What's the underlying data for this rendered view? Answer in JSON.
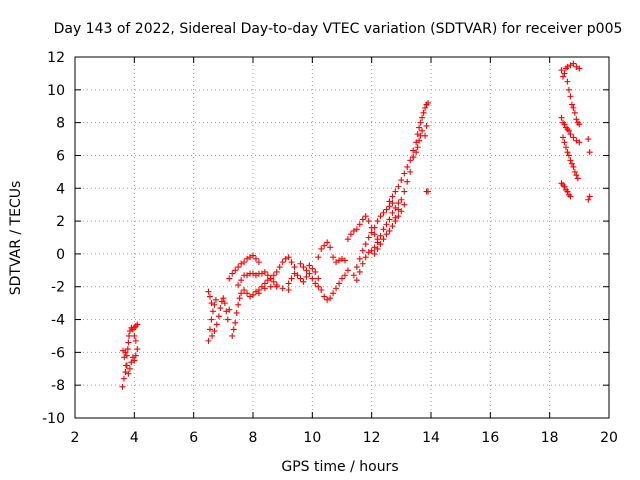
{
  "chart_data": {
    "type": "scatter",
    "title": "Day 143 of 2022, Sidereal Day-to-day VTEC variation (SDTVAR) for receiver p005",
    "xlabel": "GPS time / hours",
    "ylabel": "SDTVAR / TECUs",
    "xlim": [
      2,
      20
    ],
    "ylim": [
      -10,
      12
    ],
    "xticks": [
      2,
      4,
      6,
      8,
      10,
      12,
      14,
      16,
      18,
      20
    ],
    "yticks": [
      -10,
      -8,
      -6,
      -4,
      -2,
      0,
      2,
      4,
      6,
      8,
      10,
      12
    ],
    "grid": true,
    "marker": "plus",
    "color": "#ff0000",
    "series": [
      {
        "values": [
          [
            3.6,
            -8.1
          ],
          [
            3.65,
            -7.6
          ],
          [
            3.7,
            -7.2
          ],
          [
            3.72,
            -6.8
          ],
          [
            3.75,
            -6.2
          ],
          [
            3.78,
            -5.8
          ],
          [
            3.8,
            -5.4
          ],
          [
            3.82,
            -5.0
          ],
          [
            3.85,
            -4.7
          ],
          [
            3.9,
            -4.5
          ],
          [
            3.95,
            -4.6
          ],
          [
            4.0,
            -4.5
          ],
          [
            4.05,
            -4.4
          ],
          [
            4.1,
            -4.3
          ],
          [
            3.62,
            -5.9
          ],
          [
            3.66,
            -6.3
          ],
          [
            3.7,
            -6.0
          ],
          [
            3.75,
            -6.8
          ],
          [
            3.8,
            -7.3
          ],
          [
            3.85,
            -7.0
          ],
          [
            3.9,
            -6.6
          ],
          [
            3.95,
            -6.3
          ],
          [
            4.0,
            -6.5
          ],
          [
            4.05,
            -6.2
          ],
          [
            4.1,
            -5.8
          ],
          [
            4.0,
            -5.0
          ],
          [
            4.05,
            -5.3
          ],
          [
            6.5,
            -5.3
          ],
          [
            6.55,
            -4.6
          ],
          [
            6.6,
            -4.0
          ],
          [
            6.65,
            -3.5
          ],
          [
            6.7,
            -3.1
          ],
          [
            6.75,
            -2.8
          ],
          [
            6.5,
            -2.3
          ],
          [
            6.55,
            -2.6
          ],
          [
            6.6,
            -3.0
          ],
          [
            6.62,
            -5.0
          ],
          [
            6.7,
            -4.7
          ],
          [
            6.78,
            -4.3
          ],
          [
            6.85,
            -3.8
          ],
          [
            6.9,
            -3.3
          ],
          [
            6.95,
            -2.9
          ],
          [
            7.0,
            -2.7
          ],
          [
            7.05,
            -3.0
          ],
          [
            7.1,
            -3.5
          ],
          [
            7.15,
            -4.0
          ],
          [
            7.2,
            -3.4
          ],
          [
            7.3,
            -5.0
          ],
          [
            7.35,
            -4.6
          ],
          [
            7.4,
            -4.2
          ],
          [
            7.45,
            -3.6
          ],
          [
            7.5,
            -3.1
          ],
          [
            7.55,
            -2.7
          ],
          [
            7.6,
            -2.4
          ],
          [
            7.7,
            -2.2
          ],
          [
            7.8,
            -2.4
          ],
          [
            7.9,
            -2.6
          ],
          [
            8.0,
            -2.5
          ],
          [
            8.2,
            -2.4
          ],
          [
            8.4,
            -2.1
          ],
          [
            8.6,
            -2.0
          ],
          [
            8.8,
            -2.0
          ],
          [
            9.0,
            -2.1
          ],
          [
            9.2,
            -2.2
          ],
          [
            7.2,
            -1.5
          ],
          [
            7.3,
            -1.2
          ],
          [
            7.4,
            -1.0
          ],
          [
            7.5,
            -0.8
          ],
          [
            7.6,
            -0.6
          ],
          [
            7.7,
            -0.5
          ],
          [
            7.8,
            -0.3
          ],
          [
            7.9,
            -0.2
          ],
          [
            8.0,
            -0.1
          ],
          [
            8.1,
            -0.3
          ],
          [
            8.2,
            -0.5
          ],
          [
            7.5,
            -1.9
          ],
          [
            7.6,
            -1.6
          ],
          [
            7.7,
            -1.3
          ],
          [
            7.8,
            -1.3
          ],
          [
            7.9,
            -1.2
          ],
          [
            8.0,
            -1.2
          ],
          [
            8.1,
            -1.3
          ],
          [
            8.2,
            -1.2
          ],
          [
            8.3,
            -1.2
          ],
          [
            8.4,
            -1.1
          ],
          [
            8.5,
            -1.3
          ],
          [
            8.6,
            -1.5
          ],
          [
            8.7,
            -1.7
          ],
          [
            8.8,
            -1.9
          ],
          [
            8.0,
            -2.5
          ],
          [
            8.1,
            -2.3
          ],
          [
            8.2,
            -2.2
          ],
          [
            8.3,
            -2.0
          ],
          [
            8.4,
            -1.8
          ],
          [
            8.5,
            -1.6
          ],
          [
            8.6,
            -1.5
          ],
          [
            8.7,
            -1.3
          ],
          [
            8.8,
            -1.1
          ],
          [
            8.9,
            -0.8
          ],
          [
            9.0,
            -0.5
          ],
          [
            9.1,
            -0.3
          ],
          [
            9.2,
            -0.2
          ],
          [
            9.3,
            -0.5
          ],
          [
            9.4,
            -0.8
          ],
          [
            9.2,
            -1.8
          ],
          [
            9.3,
            -1.5
          ],
          [
            9.4,
            -1.2
          ],
          [
            9.5,
            -1.3
          ],
          [
            9.6,
            -1.5
          ],
          [
            9.7,
            -1.7
          ],
          [
            9.8,
            -1.4
          ],
          [
            9.9,
            -1.2
          ],
          [
            10.0,
            -1.5
          ],
          [
            10.1,
            -1.8
          ],
          [
            10.2,
            -2.0
          ],
          [
            9.6,
            -0.6
          ],
          [
            9.7,
            -0.8
          ],
          [
            9.8,
            -1.0
          ],
          [
            9.9,
            -0.7
          ],
          [
            10.0,
            -0.9
          ],
          [
            10.1,
            -1.1
          ],
          [
            10.2,
            -1.5
          ],
          [
            10.3,
            -2.2
          ],
          [
            10.4,
            -2.6
          ],
          [
            10.5,
            -2.8
          ],
          [
            10.6,
            -2.7
          ],
          [
            10.7,
            -2.4
          ],
          [
            10.8,
            -2.1
          ],
          [
            10.9,
            -1.8
          ],
          [
            11.0,
            -1.5
          ],
          [
            11.1,
            -1.3
          ],
          [
            11.2,
            -1.0
          ],
          [
            10.2,
            -0.2
          ],
          [
            10.3,
            0.3
          ],
          [
            10.4,
            0.5
          ],
          [
            10.5,
            0.7
          ],
          [
            10.6,
            0.4
          ],
          [
            10.7,
            -0.2
          ],
          [
            10.8,
            -0.5
          ],
          [
            10.9,
            -0.4
          ],
          [
            11.0,
            -0.3
          ],
          [
            11.1,
            -0.4
          ],
          [
            11.2,
            0.9
          ],
          [
            11.3,
            1.2
          ],
          [
            11.4,
            1.4
          ],
          [
            11.5,
            1.5
          ],
          [
            11.6,
            1.8
          ],
          [
            11.7,
            2.1
          ],
          [
            11.8,
            2.3
          ],
          [
            11.9,
            2.0
          ],
          [
            12.0,
            1.6
          ],
          [
            12.1,
            1.2
          ],
          [
            12.2,
            0.9
          ],
          [
            11.4,
            -1.3
          ],
          [
            11.5,
            -0.8
          ],
          [
            11.6,
            -0.3
          ],
          [
            11.7,
            0.2
          ],
          [
            11.8,
            0.6
          ],
          [
            11.9,
            1.0
          ],
          [
            12.0,
            1.3
          ],
          [
            12.1,
            1.6
          ],
          [
            12.2,
            2.0
          ],
          [
            12.3,
            2.3
          ],
          [
            12.4,
            2.5
          ],
          [
            12.5,
            2.7
          ],
          [
            12.6,
            2.9
          ],
          [
            12.7,
            3.1
          ],
          [
            11.5,
            -1.6
          ],
          [
            11.6,
            -1.1
          ],
          [
            11.7,
            -0.6
          ],
          [
            11.8,
            -0.2
          ],
          [
            11.9,
            0.1
          ],
          [
            12.0,
            0.2
          ],
          [
            12.1,
            0.4
          ],
          [
            12.2,
            0.7
          ],
          [
            12.3,
            1.1
          ],
          [
            12.4,
            1.5
          ],
          [
            12.5,
            1.8
          ],
          [
            12.6,
            2.1
          ],
          [
            12.7,
            2.5
          ],
          [
            12.8,
            2.8
          ],
          [
            12.9,
            3.1
          ],
          [
            12.1,
            0.0
          ],
          [
            12.2,
            0.3
          ],
          [
            12.3,
            0.6
          ],
          [
            12.4,
            0.9
          ],
          [
            12.5,
            1.2
          ],
          [
            12.6,
            1.4
          ],
          [
            12.7,
            1.7
          ],
          [
            12.8,
            2.0
          ],
          [
            12.9,
            2.3
          ],
          [
            13.0,
            2.6
          ],
          [
            13.1,
            3.0
          ],
          [
            12.6,
            3.2
          ],
          [
            12.7,
            3.5
          ],
          [
            12.8,
            3.8
          ],
          [
            12.9,
            4.1
          ],
          [
            13.0,
            4.5
          ],
          [
            13.1,
            4.9
          ],
          [
            13.2,
            5.3
          ],
          [
            13.3,
            5.7
          ],
          [
            13.4,
            5.9
          ],
          [
            12.8,
            2.2
          ],
          [
            12.9,
            2.7
          ],
          [
            13.0,
            3.3
          ],
          [
            13.1,
            3.8
          ],
          [
            13.2,
            4.4
          ],
          [
            13.3,
            5.0
          ],
          [
            13.4,
            6.3
          ],
          [
            13.5,
            6.8
          ],
          [
            13.55,
            7.3
          ],
          [
            13.6,
            7.7
          ],
          [
            13.65,
            8.0
          ],
          [
            13.7,
            8.3
          ],
          [
            13.75,
            8.6
          ],
          [
            13.8,
            8.9
          ],
          [
            13.85,
            9.1
          ],
          [
            13.9,
            9.2
          ],
          [
            13.4,
            5.9
          ],
          [
            13.5,
            6.2
          ],
          [
            13.55,
            6.5
          ],
          [
            13.6,
            6.9
          ],
          [
            13.65,
            7.2
          ],
          [
            13.7,
            7.5
          ],
          [
            13.8,
            7.2
          ],
          [
            13.85,
            7.8
          ],
          [
            13.9,
            3.8
          ],
          [
            13.85,
            3.8
          ],
          [
            18.4,
            11.2
          ],
          [
            18.45,
            10.8
          ],
          [
            18.5,
            11.0
          ],
          [
            18.55,
            11.3
          ],
          [
            18.6,
            11.4
          ],
          [
            18.7,
            11.5
          ],
          [
            18.8,
            11.6
          ],
          [
            18.9,
            11.4
          ],
          [
            19.0,
            11.3
          ],
          [
            18.6,
            10.5
          ],
          [
            18.65,
            10.0
          ],
          [
            18.7,
            9.6
          ],
          [
            18.75,
            9.1
          ],
          [
            18.8,
            8.9
          ],
          [
            18.85,
            8.6
          ],
          [
            18.9,
            8.2
          ],
          [
            18.95,
            8.0
          ],
          [
            19.0,
            7.9
          ],
          [
            18.4,
            8.3
          ],
          [
            18.45,
            8.0
          ],
          [
            18.5,
            7.9
          ],
          [
            18.55,
            7.7
          ],
          [
            18.6,
            7.6
          ],
          [
            18.65,
            7.5
          ],
          [
            18.7,
            7.3
          ],
          [
            18.8,
            7.1
          ],
          [
            18.9,
            6.9
          ],
          [
            19.0,
            6.8
          ],
          [
            18.45,
            7.1
          ],
          [
            18.5,
            6.8
          ],
          [
            18.55,
            6.5
          ],
          [
            18.6,
            6.2
          ],
          [
            18.65,
            6.0
          ],
          [
            18.7,
            5.7
          ],
          [
            18.75,
            5.5
          ],
          [
            18.8,
            5.3
          ],
          [
            18.85,
            5.0
          ],
          [
            18.9,
            4.8
          ],
          [
            18.95,
            4.6
          ],
          [
            18.4,
            4.3
          ],
          [
            18.45,
            4.2
          ],
          [
            18.5,
            4.1
          ],
          [
            18.55,
            3.9
          ],
          [
            18.6,
            3.8
          ],
          [
            18.65,
            3.6
          ],
          [
            18.7,
            3.5
          ],
          [
            19.3,
            7.0
          ],
          [
            19.35,
            6.2
          ],
          [
            19.3,
            3.3
          ],
          [
            19.35,
            3.5
          ]
        ]
      }
    ]
  }
}
